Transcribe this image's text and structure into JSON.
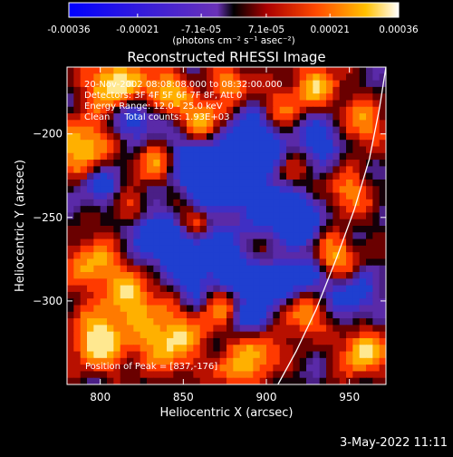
{
  "colorbar": {
    "ticks": [
      -0.00036,
      -0.00021,
      -7.1e-05,
      7.1e-05,
      0.00021,
      0.00036
    ],
    "tick_labels": [
      "-0.00036",
      "-0.00021",
      "-7.1e-05",
      "7.1e-05",
      "0.00021",
      "0.00036"
    ],
    "unit_label": "(photons cm⁻² s⁻¹ asec⁻²)",
    "range": [
      -0.00036,
      0.00036
    ]
  },
  "chart_data": {
    "type": "heatmap",
    "title": "Reconstructed RHESSI Image",
    "xlabel": "Heliocentric X (arcsec)",
    "ylabel": "Heliocentric Y (arcsec)",
    "xlim": [
      780,
      972
    ],
    "ylim": [
      -350,
      -160
    ],
    "x_ticks": [
      800,
      850,
      900,
      950
    ],
    "y_ticks": [
      -200,
      -250,
      -300
    ],
    "x_tick_labels": [
      "800",
      "850",
      "900",
      "950"
    ],
    "y_tick_labels": [
      "−200",
      "−250",
      "−300"
    ],
    "annotations": [
      "20-Nov-2002 08:08:08.000 to 08:32:00.000",
      "Detectors: 3F 4F 5F 6F 7F 8F, Att 0",
      "Energy Range: 12.0 - 25.0 keV",
      "Clean     Total counts: 1.93E+03"
    ],
    "peak_label": "Position of Peak = [837,-176]",
    "peak": [
      837,
      -176
    ],
    "limb_curve": [
      [
        907,
        -350
      ],
      [
        918,
        -330
      ],
      [
        930,
        -305
      ],
      [
        942,
        -275
      ],
      [
        953,
        -245
      ],
      [
        962,
        -215
      ],
      [
        968,
        -185
      ],
      [
        972,
        -160
      ]
    ]
  },
  "footer": {
    "timestamp": "3-May-2022 11:11"
  }
}
